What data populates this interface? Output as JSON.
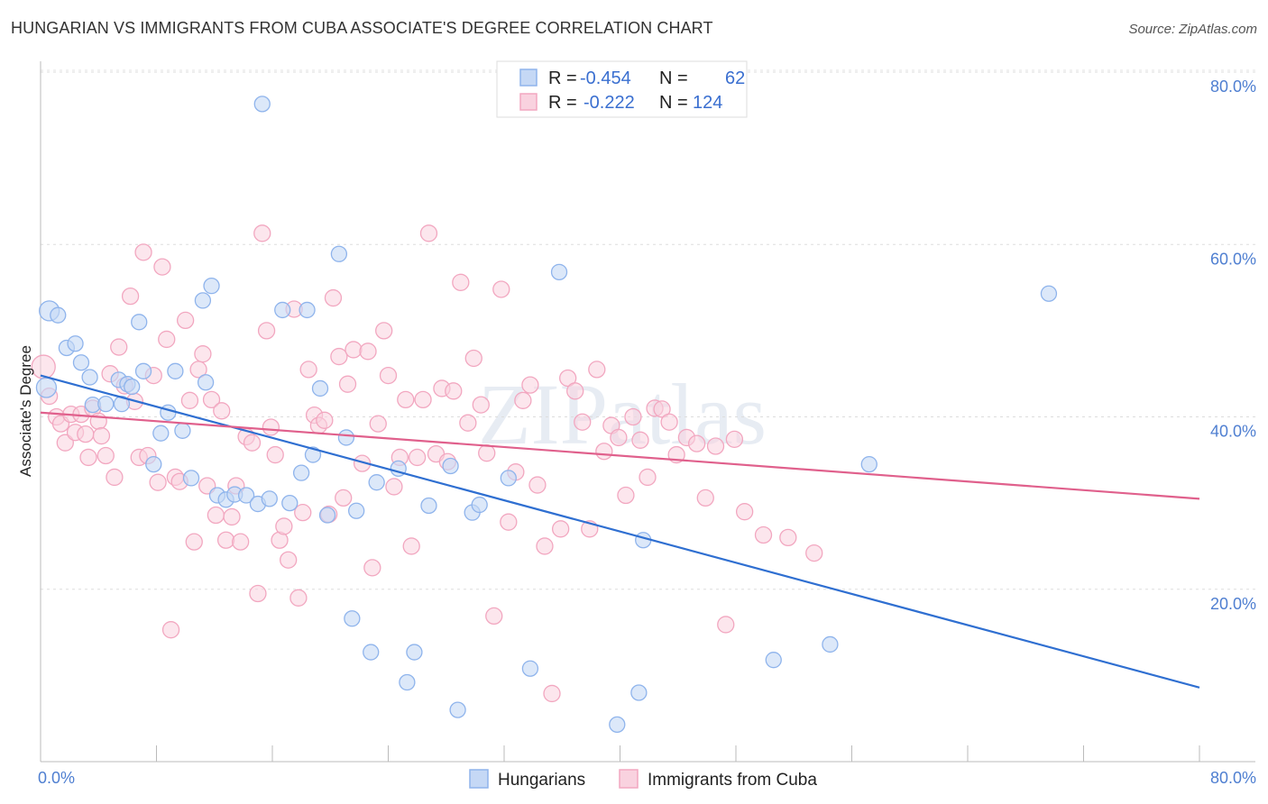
{
  "title": "HUNGARIAN VS IMMIGRANTS FROM CUBA ASSOCIATE'S DEGREE CORRELATION CHART",
  "source": "Source: ZipAtlas.com",
  "watermark": "ZIPatlas",
  "legend": {
    "r_label": "R =",
    "n_label": "N =",
    "rows": [
      {
        "r": "-0.454",
        "n": "62"
      },
      {
        "r": "-0.222",
        "n": "124"
      }
    ]
  },
  "chart_data": {
    "type": "scatter",
    "title": "HUNGARIAN VS IMMIGRANTS FROM CUBA ASSOCIATE'S DEGREE CORRELATION CHART",
    "xlabel": "",
    "ylabel": "Associate's Degree",
    "xlim": [
      0,
      80
    ],
    "ylim": [
      0,
      80
    ],
    "x_tick_labels": [
      "0.0%",
      "80.0%"
    ],
    "y_ticks": [
      20,
      40,
      60,
      80
    ],
    "y_tick_labels": [
      "20.0%",
      "40.0%",
      "60.0%",
      "80.0%"
    ],
    "grid": true,
    "legend_position": "top-center",
    "colors": {
      "Hungarians": "#8fb4ec",
      "Immigrants from Cuba": "#f2a7c0",
      "line_hungarians": "#2f6fd1",
      "line_cuba": "#e0608c"
    },
    "series": [
      {
        "name": "Hungarians",
        "trend": {
          "x": [
            0,
            80
          ],
          "y": [
            44.8,
            8.6
          ]
        },
        "points": [
          [
            0.6,
            52.3
          ],
          [
            1.2,
            51.8
          ],
          [
            0.4,
            43.4
          ],
          [
            1.8,
            48.0
          ],
          [
            2.4,
            48.5
          ],
          [
            2.8,
            46.3
          ],
          [
            3.4,
            44.6
          ],
          [
            3.6,
            41.4
          ],
          [
            4.5,
            41.5
          ],
          [
            5.4,
            44.3
          ],
          [
            5.6,
            41.5
          ],
          [
            6.0,
            43.8
          ],
          [
            6.3,
            43.5
          ],
          [
            6.8,
            51.0
          ],
          [
            7.1,
            45.3
          ],
          [
            7.8,
            34.5
          ],
          [
            8.3,
            38.1
          ],
          [
            8.8,
            40.5
          ],
          [
            9.3,
            45.3
          ],
          [
            9.8,
            38.4
          ],
          [
            10.4,
            32.9
          ],
          [
            11.2,
            53.5
          ],
          [
            11.4,
            44.0
          ],
          [
            11.8,
            55.2
          ],
          [
            12.2,
            30.9
          ],
          [
            12.8,
            30.4
          ],
          [
            13.4,
            31.0
          ],
          [
            14.2,
            30.9
          ],
          [
            15.0,
            29.9
          ],
          [
            15.3,
            76.3
          ],
          [
            15.8,
            30.5
          ],
          [
            16.7,
            52.4
          ],
          [
            17.2,
            30.0
          ],
          [
            18.0,
            33.5
          ],
          [
            18.4,
            52.4
          ],
          [
            18.8,
            35.6
          ],
          [
            19.3,
            43.3
          ],
          [
            19.8,
            28.6
          ],
          [
            20.6,
            58.9
          ],
          [
            21.1,
            37.6
          ],
          [
            21.5,
            16.6
          ],
          [
            21.8,
            29.1
          ],
          [
            22.8,
            12.7
          ],
          [
            23.2,
            32.4
          ],
          [
            24.7,
            34.0
          ],
          [
            25.3,
            9.2
          ],
          [
            25.8,
            12.7
          ],
          [
            26.8,
            29.7
          ],
          [
            28.3,
            34.3
          ],
          [
            28.8,
            6.0
          ],
          [
            29.8,
            28.9
          ],
          [
            30.3,
            29.8
          ],
          [
            32.3,
            32.9
          ],
          [
            33.8,
            10.8
          ],
          [
            35.8,
            56.8
          ],
          [
            39.8,
            4.3
          ],
          [
            41.3,
            8.0
          ],
          [
            41.6,
            25.7
          ],
          [
            50.6,
            11.8
          ],
          [
            54.5,
            13.6
          ],
          [
            57.2,
            34.5
          ],
          [
            69.6,
            54.3
          ]
        ]
      },
      {
        "name": "Immigrants from Cuba",
        "trend": {
          "x": [
            0,
            80
          ],
          "y": [
            40.5,
            30.5
          ]
        },
        "points": [
          [
            0.2,
            45.8
          ],
          [
            0.6,
            42.4
          ],
          [
            1.1,
            40.0
          ],
          [
            1.4,
            39.2
          ],
          [
            1.7,
            37.0
          ],
          [
            2.1,
            40.3
          ],
          [
            2.4,
            38.2
          ],
          [
            2.8,
            40.3
          ],
          [
            3.1,
            38.0
          ],
          [
            3.3,
            35.3
          ],
          [
            3.6,
            41.0
          ],
          [
            4.0,
            39.5
          ],
          [
            4.2,
            37.8
          ],
          [
            4.5,
            35.5
          ],
          [
            4.8,
            45.0
          ],
          [
            5.1,
            33.0
          ],
          [
            5.4,
            48.1
          ],
          [
            5.8,
            43.6
          ],
          [
            6.2,
            54.0
          ],
          [
            6.5,
            41.8
          ],
          [
            6.8,
            35.3
          ],
          [
            7.1,
            59.1
          ],
          [
            7.4,
            35.5
          ],
          [
            7.8,
            44.8
          ],
          [
            8.1,
            32.4
          ],
          [
            8.4,
            57.4
          ],
          [
            8.7,
            49.0
          ],
          [
            9.0,
            15.3
          ],
          [
            9.3,
            33.0
          ],
          [
            9.6,
            32.5
          ],
          [
            10.0,
            51.2
          ],
          [
            10.3,
            41.9
          ],
          [
            10.6,
            25.5
          ],
          [
            10.9,
            45.5
          ],
          [
            11.2,
            47.3
          ],
          [
            11.5,
            32.0
          ],
          [
            11.8,
            42.0
          ],
          [
            12.1,
            28.6
          ],
          [
            12.5,
            40.7
          ],
          [
            12.8,
            25.7
          ],
          [
            13.2,
            28.4
          ],
          [
            13.5,
            32.0
          ],
          [
            13.8,
            25.5
          ],
          [
            14.2,
            37.7
          ],
          [
            14.6,
            37.0
          ],
          [
            15.0,
            19.5
          ],
          [
            15.3,
            61.3
          ],
          [
            15.6,
            50.0
          ],
          [
            15.9,
            38.8
          ],
          [
            16.2,
            35.6
          ],
          [
            16.5,
            25.7
          ],
          [
            16.8,
            27.3
          ],
          [
            17.1,
            23.4
          ],
          [
            17.5,
            52.5
          ],
          [
            17.8,
            19.0
          ],
          [
            18.1,
            28.9
          ],
          [
            18.5,
            45.5
          ],
          [
            18.9,
            40.2
          ],
          [
            19.2,
            39.0
          ],
          [
            19.6,
            39.6
          ],
          [
            19.9,
            28.7
          ],
          [
            20.2,
            53.8
          ],
          [
            20.6,
            47.0
          ],
          [
            20.9,
            30.6
          ],
          [
            21.2,
            43.8
          ],
          [
            21.6,
            47.8
          ],
          [
            22.2,
            34.6
          ],
          [
            22.6,
            47.6
          ],
          [
            22.9,
            22.5
          ],
          [
            23.3,
            39.2
          ],
          [
            23.7,
            50.0
          ],
          [
            24.0,
            44.8
          ],
          [
            24.4,
            31.9
          ],
          [
            24.8,
            35.3
          ],
          [
            25.2,
            42.0
          ],
          [
            25.6,
            25.0
          ],
          [
            26.0,
            35.3
          ],
          [
            26.4,
            42.0
          ],
          [
            26.8,
            61.3
          ],
          [
            27.3,
            35.7
          ],
          [
            27.7,
            43.3
          ],
          [
            28.1,
            34.8
          ],
          [
            28.5,
            43.0
          ],
          [
            29.0,
            55.6
          ],
          [
            29.5,
            39.3
          ],
          [
            29.9,
            46.8
          ],
          [
            30.4,
            41.4
          ],
          [
            30.8,
            35.8
          ],
          [
            31.3,
            16.9
          ],
          [
            31.8,
            54.8
          ],
          [
            32.3,
            27.8
          ],
          [
            32.8,
            33.6
          ],
          [
            33.3,
            41.9
          ],
          [
            33.8,
            43.7
          ],
          [
            34.3,
            32.1
          ],
          [
            34.8,
            25.0
          ],
          [
            35.3,
            7.9
          ],
          [
            35.9,
            27.0
          ],
          [
            36.4,
            44.5
          ],
          [
            36.9,
            43.0
          ],
          [
            37.4,
            39.4
          ],
          [
            37.9,
            27.0
          ],
          [
            38.4,
            45.5
          ],
          [
            38.9,
            36.0
          ],
          [
            39.4,
            39.0
          ],
          [
            39.9,
            37.6
          ],
          [
            40.4,
            30.9
          ],
          [
            40.9,
            40.0
          ],
          [
            41.4,
            37.3
          ],
          [
            41.9,
            33.0
          ],
          [
            42.4,
            41.0
          ],
          [
            42.9,
            40.9
          ],
          [
            43.4,
            39.4
          ],
          [
            43.9,
            35.6
          ],
          [
            44.6,
            37.6
          ],
          [
            45.3,
            36.9
          ],
          [
            45.9,
            30.6
          ],
          [
            46.6,
            36.6
          ],
          [
            47.3,
            15.9
          ],
          [
            47.9,
            37.4
          ],
          [
            48.6,
            29.0
          ],
          [
            49.9,
            26.3
          ],
          [
            51.6,
            26.0
          ],
          [
            53.4,
            24.2
          ]
        ]
      }
    ]
  },
  "bottom_legend": [
    "Hungarians",
    "Immigrants from Cuba"
  ]
}
